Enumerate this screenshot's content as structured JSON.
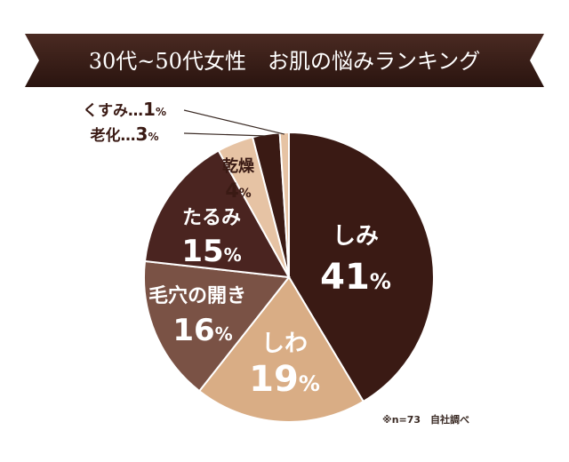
{
  "chart_data": {
    "type": "pie",
    "title": "30代~50代女性　お肌の悩みランキング",
    "note": "※n=73　自社調べ",
    "slices": [
      {
        "label": "しみ",
        "value": 41,
        "value_label": "41",
        "unit": "%",
        "color": "#3a1a14",
        "text_color": "#ffffff"
      },
      {
        "label": "しわ",
        "value": 19,
        "value_label": "19",
        "unit": "%",
        "color": "#d9ad85",
        "text_color": "#ffffff"
      },
      {
        "label": "毛穴の開き",
        "value": 16,
        "value_label": "16",
        "unit": "%",
        "color": "#7a5245",
        "text_color": "#ffffff"
      },
      {
        "label": "たるみ",
        "value": 15,
        "value_label": "15",
        "unit": "%",
        "color": "#4a2420",
        "text_color": "#ffffff"
      },
      {
        "label": "乾燥",
        "value": 4,
        "value_label": "4",
        "unit": "%",
        "color": "#e6c3a4",
        "text_color": "#3a1a14"
      },
      {
        "label": "老化",
        "value": 3,
        "value_label": "3",
        "unit": "%",
        "color": "#3a1a14",
        "text_color": "#3a1a14"
      },
      {
        "label": "くすみ",
        "value": 1,
        "value_label": "1",
        "unit": "%",
        "color": "#e6c3a4",
        "text_color": "#3a1a14"
      }
    ],
    "separator": "…"
  }
}
